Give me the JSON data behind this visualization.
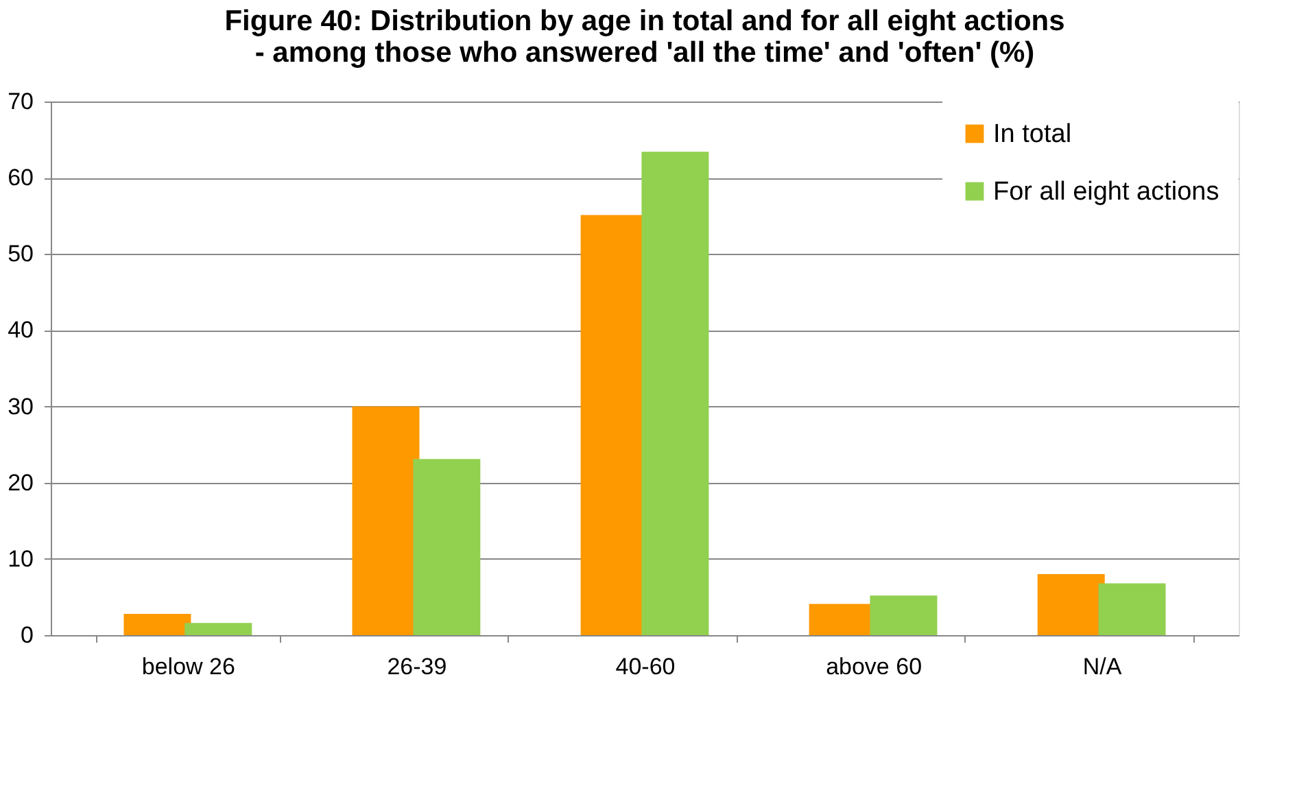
{
  "chart_data": {
    "type": "bar",
    "title": [
      "Figure 40: Distribution by age in total and for all eight actions",
      "- among those who answered 'all the time' and 'often'  (%)"
    ],
    "categories": [
      "below 26",
      "26-39",
      "40-60",
      "above 60",
      "N/A"
    ],
    "series": [
      {
        "name": "In total",
        "color": "#ff9900",
        "values": [
          2.8,
          30,
          55.1,
          4.1,
          8.0
        ]
      },
      {
        "name": "For all eight actions",
        "color": "#92d050",
        "values": [
          1.6,
          23.1,
          63.4,
          5.2,
          6.8
        ]
      }
    ],
    "ylim": [
      0,
      70
    ],
    "yticks": [
      0,
      10,
      20,
      30,
      40,
      50,
      60,
      70
    ],
    "grid": "y",
    "legend": "top right"
  }
}
